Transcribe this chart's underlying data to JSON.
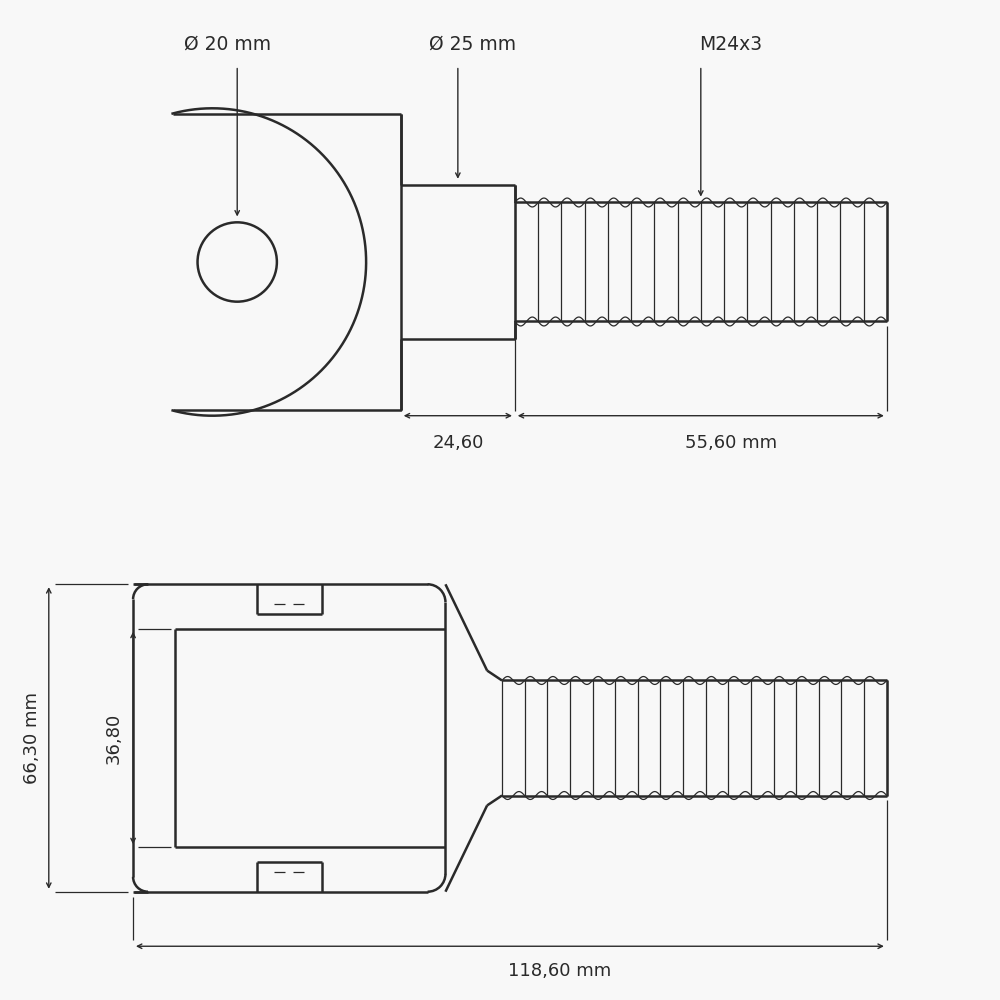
{
  "bg_color": "#f8f8f8",
  "line_color": "#2a2a2a",
  "line_width": 1.8,
  "thin_line": 0.9,
  "annotations": {
    "diam_20": "Ø 20 mm",
    "diam_25": "Ø 25 mm",
    "m24x3": "M24x3",
    "dim_2460": "24,60",
    "dim_5560": "55,60 mm",
    "dim_6630": "66,30 mm",
    "dim_3680": "36,80",
    "dim_11860": "118,60 mm"
  },
  "font_size_label": 13.5,
  "font_size_dim": 13.0
}
